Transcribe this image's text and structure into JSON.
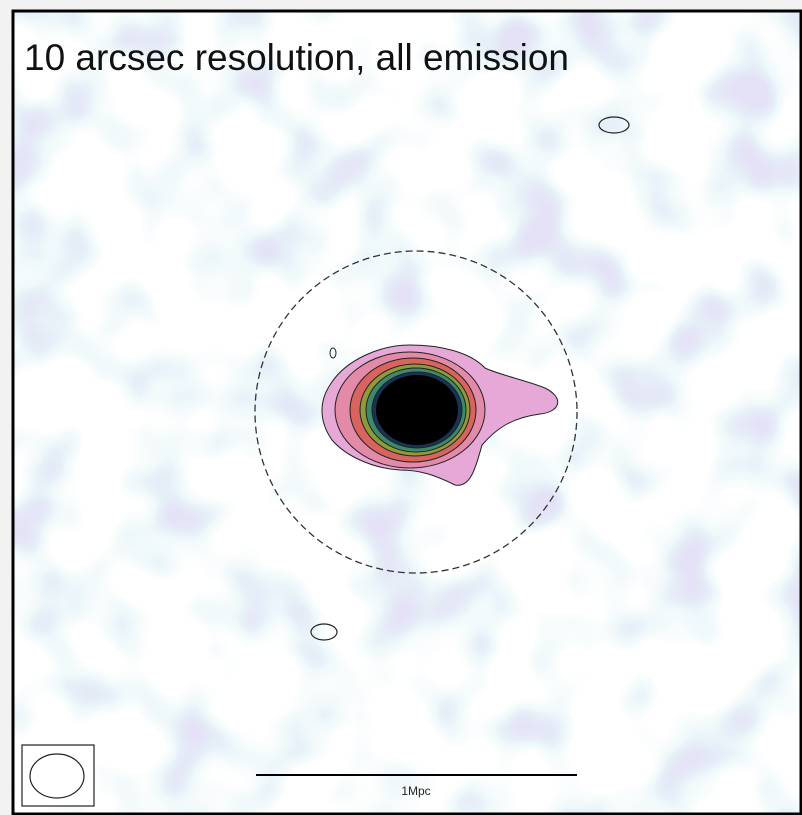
{
  "title": "10 arcsec resolution, all emission",
  "scale_bar": {
    "label": "1Mpc"
  }
}
